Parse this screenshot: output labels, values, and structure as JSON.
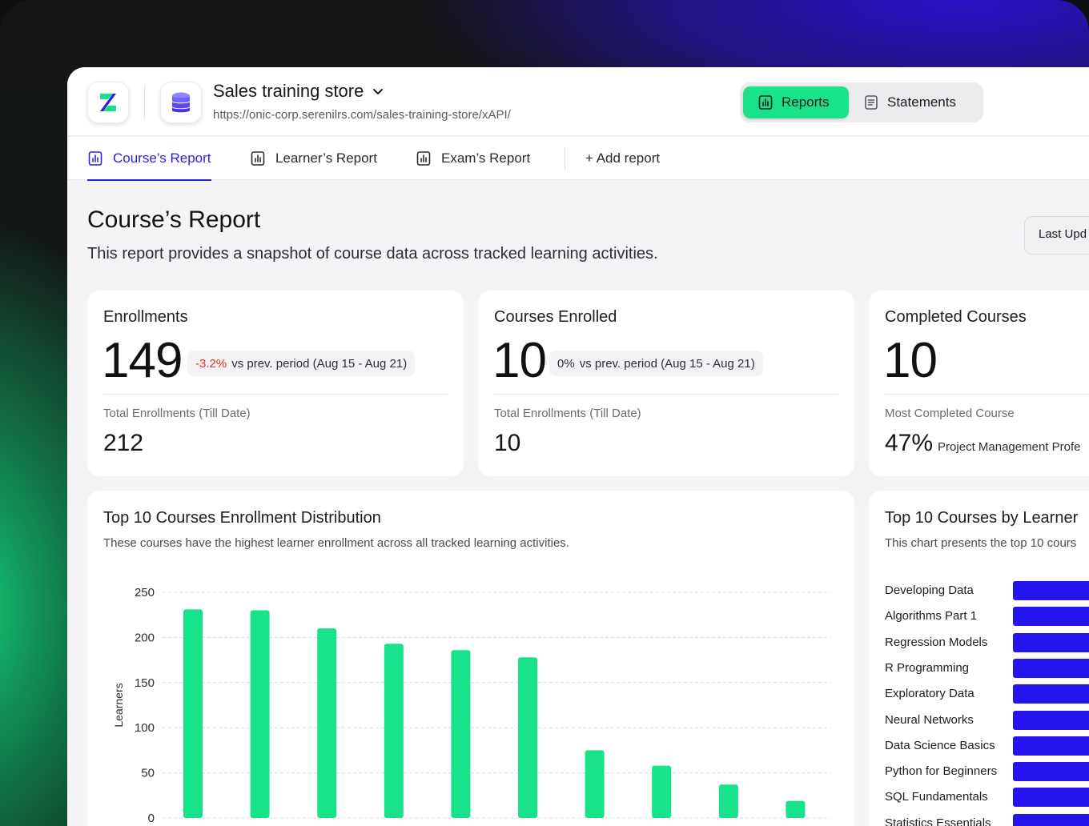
{
  "header": {
    "store_name": "Sales training store",
    "store_url": "https://onic-corp.serenilrs.com/sales-training-store/xAPI/",
    "segments": [
      {
        "label": "Reports",
        "active": true
      },
      {
        "label": "Statements",
        "active": false
      }
    ]
  },
  "tabs": [
    {
      "label": "Course’s Report",
      "active": true
    },
    {
      "label": "Learner’s Report",
      "active": false
    },
    {
      "label": "Exam’s Report",
      "active": false
    }
  ],
  "add_report_label": "+ Add report",
  "page": {
    "title": "Course’s Report",
    "subtitle": "This report provides a snapshot of course data across tracked learning activities.",
    "last_updated_label": "Last Upd"
  },
  "kpis": [
    {
      "title": "Enrollments",
      "value": "149",
      "delta": "-3.2%",
      "delta_text": "vs prev. period (Aug 15 - Aug 21)",
      "sub_label": "Total Enrollments (Till Date)",
      "sub_value": "212"
    },
    {
      "title": "Courses Enrolled",
      "value": "10",
      "delta": "0%",
      "delta_text": "vs prev. period (Aug 15 - Aug 21)",
      "sub_label": "Total Enrollments (Till Date)",
      "sub_value": "10"
    },
    {
      "title": "Completed Courses",
      "value": "10",
      "sub_label": "Most Completed Course",
      "sub_value": "47%",
      "sub_course": "Project Management Profe"
    }
  ],
  "colors": {
    "accent_green": "#19e38a",
    "accent_blue": "#2b22e0",
    "bar_green": "#19e38a",
    "bar_blue": "#2415ee",
    "negative": "#e0322d"
  },
  "chart_data": [
    {
      "type": "bar",
      "title": "Top 10 Courses Enrollment Distribution",
      "subtitle": "These courses have the highest learner enrollment across all tracked learning activities.",
      "ylabel": "Learners",
      "xlabel": "",
      "ylim": [
        0,
        250
      ],
      "yticks": [
        0,
        50,
        100,
        150,
        200,
        250
      ],
      "grid": true,
      "values": [
        231,
        230,
        210,
        193,
        186,
        178,
        75,
        58,
        37,
        19
      ]
    },
    {
      "type": "bar",
      "orientation": "horizontal",
      "title": "Top 10 Courses by Learner",
      "subtitle": "This chart presents the top 10 cours",
      "categories": [
        "Developing Data",
        "Algorithms Part 1",
        "Regression Models",
        "R Programming",
        "Exploratory Data",
        "Neural Networks",
        "Data Science Basics",
        "Python for Beginners",
        "SQL Fundamentals",
        "Statistics Essentials"
      ]
    }
  ]
}
